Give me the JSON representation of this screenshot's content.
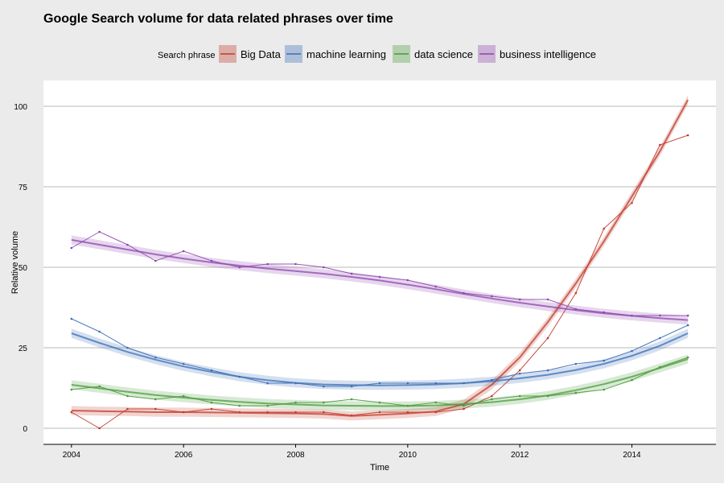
{
  "chart_data": {
    "type": "line",
    "title": "Google Search volume for data related phrases over time",
    "xlabel": "Time",
    "ylabel": "Relative volume",
    "legend_title": "Search phrase",
    "legend_position": "top",
    "xlim": [
      2003.5,
      2015.5
    ],
    "ylim": [
      -5,
      108
    ],
    "x_ticks": [
      2004,
      2006,
      2008,
      2010,
      2012,
      2014
    ],
    "y_ticks": [
      0,
      25,
      50,
      75,
      100
    ],
    "grid": true,
    "x": [
      2004.0,
      2004.5,
      2005.0,
      2005.5,
      2006.0,
      2006.5,
      2007.0,
      2007.5,
      2008.0,
      2008.5,
      2009.0,
      2009.5,
      2010.0,
      2010.5,
      2011.0,
      2011.5,
      2012.0,
      2012.5,
      2013.0,
      2013.5,
      2014.0,
      2014.5,
      2015.0
    ],
    "series": [
      {
        "name": "Big Data",
        "color": "#c0392b",
        "values": [
          5,
          0,
          6,
          6,
          5,
          6,
          5,
          5,
          5,
          5,
          4,
          5,
          5,
          5,
          6,
          10,
          18,
          28,
          42,
          62,
          70,
          88,
          91
        ],
        "smooth": [
          5.5,
          5.3,
          5.2,
          5.0,
          5.0,
          4.9,
          4.8,
          4.7,
          4.6,
          4.4,
          3.8,
          4.2,
          4.6,
          5.2,
          7.5,
          13.5,
          22,
          33,
          45,
          58,
          72,
          86,
          102
        ]
      },
      {
        "name": "machine learning",
        "color": "#3a6db5",
        "values": [
          34,
          30,
          25,
          22,
          20,
          18,
          16,
          14,
          14,
          13,
          13,
          14,
          14,
          14,
          14,
          15,
          17,
          18,
          20,
          21,
          24,
          28,
          32
        ],
        "smooth": [
          29.5,
          26.5,
          23.7,
          21.3,
          19.2,
          17.5,
          16.0,
          14.9,
          14.1,
          13.6,
          13.4,
          13.3,
          13.4,
          13.6,
          14.0,
          14.6,
          15.5,
          16.6,
          18.1,
          20.0,
          22.5,
          25.6,
          29.5
        ]
      },
      {
        "name": "data science",
        "color": "#4a9a3a",
        "values": [
          12,
          13,
          10,
          9,
          10,
          8,
          7,
          7,
          8,
          8,
          9,
          8,
          7,
          8,
          7,
          9,
          10,
          10,
          11,
          12,
          15,
          19,
          22
        ],
        "smooth": [
          13.5,
          12.4,
          11.3,
          10.3,
          9.5,
          8.8,
          8.2,
          7.7,
          7.4,
          7.1,
          7.0,
          6.9,
          6.9,
          7.1,
          7.5,
          8.1,
          9.0,
          10.2,
          11.8,
          13.7,
          16.0,
          18.7,
          21.5
        ]
      },
      {
        "name": "business intelligence",
        "color": "#8e44ad",
        "values": [
          56,
          61,
          57,
          52,
          55,
          52,
          50,
          51,
          51,
          50,
          48,
          47,
          46,
          44,
          42,
          41,
          40,
          40,
          37,
          36,
          35,
          35,
          35
        ],
        "smooth": [
          58.5,
          57.0,
          55.5,
          54.0,
          52.7,
          51.5,
          50.5,
          49.6,
          48.8,
          48.0,
          47.0,
          45.9,
          44.6,
          43.2,
          41.7,
          40.3,
          39.0,
          37.8,
          36.7,
          35.7,
          34.9,
          34.2,
          33.6
        ]
      }
    ]
  }
}
